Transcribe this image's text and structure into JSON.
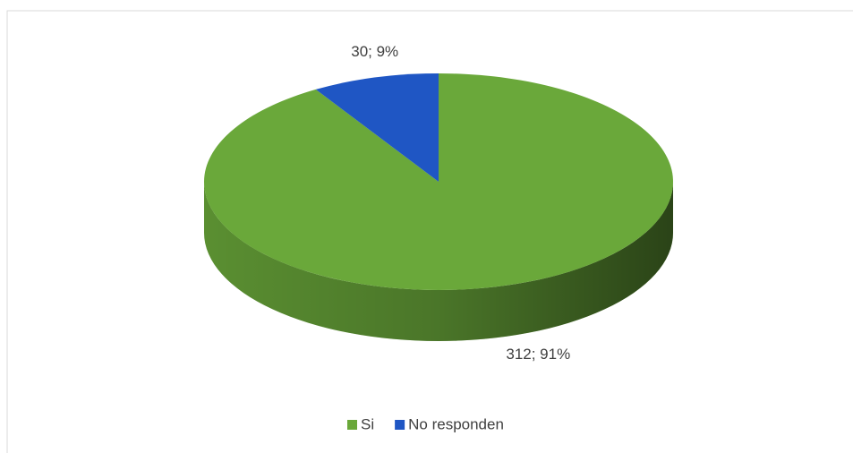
{
  "chart_data": {
    "type": "pie3d",
    "categories": [
      "Si",
      "No responden"
    ],
    "values": [
      312,
      30
    ],
    "value_labels": [
      "312; 91%",
      "30; 9%"
    ],
    "colors": [
      "#6aa83a",
      "#1f56c4"
    ],
    "legend": "bottom"
  }
}
